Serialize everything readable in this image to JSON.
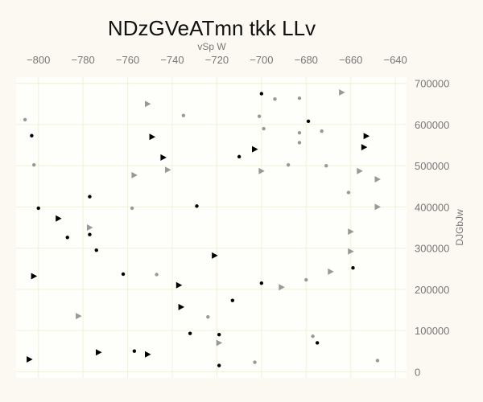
{
  "chart_data": {
    "type": "scatter",
    "title": "NDzGVeATmn tkk LLv",
    "xlabel": "vSp W",
    "ylabel": "DJGbJw",
    "x_axis_position": "top",
    "y_axis_position": "right",
    "xlim": [
      -810,
      -635
    ],
    "ylim": [
      -15000,
      715000
    ],
    "x_ticks": [
      -800,
      -780,
      -760,
      -740,
      -720,
      -700,
      -680,
      -660,
      -640
    ],
    "x_tick_labels": [
      "−800",
      "−780",
      "−760",
      "−740",
      "−720",
      "−700",
      "−680",
      "−660",
      "−640"
    ],
    "y_ticks": [
      0,
      100000,
      200000,
      300000,
      400000,
      500000,
      600000,
      700000
    ],
    "y_tick_labels": [
      "0",
      "100000",
      "200000",
      "300000",
      "400000",
      "500000",
      "600000",
      "700000"
    ],
    "grid": true,
    "series": [
      {
        "marker": "circle",
        "color": "#000000",
        "points": [
          [
            -700,
            675000
          ],
          [
            -679,
            608000
          ],
          [
            -803,
            573000
          ],
          [
            -710,
            522000
          ],
          [
            -777,
            425000
          ],
          [
            -800,
            397000
          ],
          [
            -729,
            402000
          ],
          [
            -777,
            333000
          ],
          [
            -787,
            326000
          ],
          [
            -774,
            295000
          ],
          [
            -659,
            252000
          ],
          [
            -762,
            237000
          ],
          [
            -700,
            215000
          ],
          [
            -713,
            173000
          ],
          [
            -732,
            93000
          ],
          [
            -719,
            90000
          ],
          [
            -675,
            70000
          ],
          [
            -757,
            50000
          ],
          [
            -719,
            15000
          ]
        ]
      },
      {
        "marker": "circle",
        "color": "#999999",
        "points": [
          [
            -806,
            612000
          ],
          [
            -735,
            622000
          ],
          [
            -694,
            662000
          ],
          [
            -683,
            664000
          ],
          [
            -701,
            620000
          ],
          [
            -699,
            590000
          ],
          [
            -683,
            580000
          ],
          [
            -673,
            584000
          ],
          [
            -683,
            556000
          ],
          [
            -802,
            502000
          ],
          [
            -688,
            502000
          ],
          [
            -671,
            500000
          ],
          [
            -758,
            397000
          ],
          [
            -661,
            435000
          ],
          [
            -747,
            236000
          ],
          [
            -680,
            223000
          ],
          [
            -724,
            133000
          ],
          [
            -677,
            86000
          ],
          [
            -703,
            23000
          ],
          [
            -648,
            27000
          ]
        ]
      },
      {
        "marker": "triangle",
        "color": "#000000",
        "points": [
          [
            -749,
            570000
          ],
          [
            -744,
            520000
          ],
          [
            -703,
            540000
          ],
          [
            -653,
            572000
          ],
          [
            -654,
            545000
          ],
          [
            -791,
            372000
          ],
          [
            -721,
            282000
          ],
          [
            -802,
            232000
          ],
          [
            -737,
            210000
          ],
          [
            -736,
            157000
          ],
          [
            -773,
            47000
          ],
          [
            -751,
            42000
          ],
          [
            -804,
            30000
          ]
        ]
      },
      {
        "marker": "triangle",
        "color": "#999999",
        "points": [
          [
            -751,
            650000
          ],
          [
            -664,
            678000
          ],
          [
            -742,
            490000
          ],
          [
            -757,
            477000
          ],
          [
            -700,
            487000
          ],
          [
            -656,
            487000
          ],
          [
            -648,
            467000
          ],
          [
            -648,
            400000
          ],
          [
            -777,
            350000
          ],
          [
            -660,
            340000
          ],
          [
            -660,
            292000
          ],
          [
            -669,
            243000
          ],
          [
            -691,
            205000
          ],
          [
            -782,
            135000
          ],
          [
            -719,
            70000
          ]
        ]
      }
    ]
  }
}
